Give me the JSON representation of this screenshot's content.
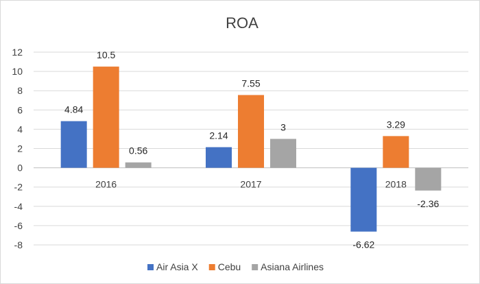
{
  "chart_data": {
    "type": "bar",
    "title": "ROA",
    "categories": [
      "2016",
      "2017",
      "2018"
    ],
    "series": [
      {
        "name": "Air Asia X",
        "values": [
          4.84,
          2.14,
          -6.62
        ],
        "color": "#4472c4"
      },
      {
        "name": "Cebu",
        "values": [
          10.5,
          7.55,
          3.29
        ],
        "color": "#ed7d31"
      },
      {
        "name": "Asiana Airlines",
        "values": [
          0.56,
          3,
          -2.36
        ],
        "color": "#a5a5a5"
      }
    ],
    "ylim": [
      -8,
      12
    ],
    "yticks": [
      "12",
      "10",
      "8",
      "6",
      "4",
      "2",
      "0",
      "-2",
      "-4",
      "-6",
      "-8"
    ],
    "data_labels": [
      [
        "4.84",
        "2.14",
        "-6.62"
      ],
      [
        "10.5",
        "7.55",
        "3.29"
      ],
      [
        "0.56",
        "3",
        "-2.36"
      ]
    ],
    "grid": true,
    "legend_position": "bottom"
  }
}
